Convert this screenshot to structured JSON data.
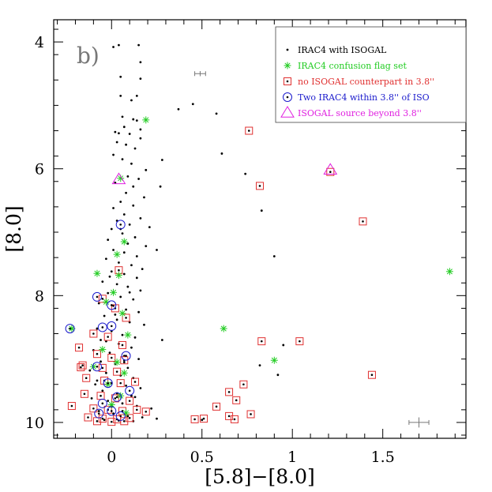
{
  "chart_data": {
    "type": "scatter",
    "panel_label": "b)",
    "xlabel": "[5.8]−[8.0]",
    "ylabel": "[8.0]",
    "xlim": [
      -0.32,
      1.96
    ],
    "ylim": [
      10.25,
      3.65
    ],
    "x_ticks": [
      0,
      0.5,
      1,
      1.5
    ],
    "x_tick_labels": [
      "0",
      "0.5",
      "1",
      "1.5"
    ],
    "y_ticks": [
      4,
      6,
      8,
      10
    ],
    "y_tick_labels": [
      "4",
      "6",
      "8",
      "10"
    ],
    "y_inverted": true,
    "legend_position": "top-right",
    "colors": {
      "black": "#000000",
      "green": "#22cc22",
      "red": "#e03030",
      "blue": "#1a1acc",
      "magenta": "#e020e0",
      "grey": "#777777"
    },
    "legend": [
      {
        "label": "IRAC4 with ISOGAL",
        "marker": "dot",
        "color": "#000000"
      },
      {
        "label": "IRAC4 confusion flag set",
        "marker": "asterisk",
        "color": "#22cc22"
      },
      {
        "label": "no ISOGAL counterpart in 3.8''",
        "marker": "dotted-square",
        "color": "#e03030"
      },
      {
        "label": "Two IRAC4 within 3.8'' of ISO",
        "marker": "dotted-circle",
        "color": "#1a1acc"
      },
      {
        "label": "ISOGAL source beyond 3.8''",
        "marker": "triangle",
        "color": "#e020e0"
      }
    ],
    "error_bars": [
      {
        "x": 0.49,
        "y": 4.5,
        "xerr": 0.03,
        "yerr": 0.04
      },
      {
        "x": 1.7,
        "y": 10.0,
        "xerr": 0.055,
        "yerr": 0.08
      }
    ],
    "series": [
      {
        "name": "IRAC4 with ISOGAL",
        "marker": "dot",
        "color": "#000000",
        "points": [
          [
            0.01,
            4.08
          ],
          [
            0.04,
            4.05
          ],
          [
            0.15,
            4.05
          ],
          [
            0.16,
            4.32
          ],
          [
            0.05,
            4.55
          ],
          [
            0.16,
            4.58
          ],
          [
            0.05,
            4.85
          ],
          [
            0.14,
            4.85
          ],
          [
            0.11,
            4.92
          ],
          [
            0.45,
            4.98
          ],
          [
            0.37,
            5.06
          ],
          [
            0.58,
            5.13
          ],
          [
            0.06,
            5.18
          ],
          [
            0.12,
            5.22
          ],
          [
            0.14,
            5.24
          ],
          [
            0.07,
            5.34
          ],
          [
            0.16,
            5.38
          ],
          [
            0.02,
            5.42
          ],
          [
            0.04,
            5.44
          ],
          [
            0.1,
            5.45
          ],
          [
            0.16,
            5.52
          ],
          [
            0.03,
            5.58
          ],
          [
            0.08,
            5.62
          ],
          [
            0.13,
            5.68
          ],
          [
            0.01,
            5.78
          ],
          [
            0.61,
            5.76
          ],
          [
            0.06,
            5.85
          ],
          [
            0.28,
            5.86
          ],
          [
            0.11,
            5.92
          ],
          [
            0.19,
            6.02
          ],
          [
            0.74,
            6.08
          ],
          [
            0.09,
            6.12
          ],
          [
            0.15,
            6.16
          ],
          [
            0.02,
            6.22
          ],
          [
            0.12,
            6.28
          ],
          [
            0.27,
            6.28
          ],
          [
            0.08,
            6.38
          ],
          [
            0.18,
            6.45
          ],
          [
            0.05,
            6.52
          ],
          [
            0.12,
            6.58
          ],
          [
            0.01,
            6.62
          ],
          [
            0.83,
            6.66
          ],
          [
            0.07,
            6.72
          ],
          [
            0.16,
            6.78
          ],
          [
            0.03,
            6.82
          ],
          [
            0.1,
            6.88
          ],
          [
            0.21,
            6.92
          ],
          [
            0.0,
            6.95
          ],
          [
            0.06,
            7.02
          ],
          [
            0.13,
            7.08
          ],
          [
            -0.02,
            7.12
          ],
          [
            0.09,
            7.18
          ],
          [
            0.19,
            7.22
          ],
          [
            0.01,
            7.28
          ],
          [
            0.07,
            7.32
          ],
          [
            0.25,
            7.28
          ],
          [
            0.14,
            7.38
          ],
          [
            0.9,
            7.38
          ],
          [
            -0.03,
            7.42
          ],
          [
            0.04,
            7.48
          ],
          [
            0.11,
            7.52
          ],
          [
            0.17,
            7.58
          ],
          [
            0.0,
            7.62
          ],
          [
            0.07,
            7.66
          ],
          [
            0.14,
            7.72
          ],
          [
            -0.05,
            7.78
          ],
          [
            0.03,
            7.82
          ],
          [
            0.09,
            7.86
          ],
          [
            0.16,
            7.92
          ],
          [
            -0.02,
            7.96
          ],
          [
            0.05,
            8.02
          ],
          [
            0.12,
            8.06
          ],
          [
            -0.07,
            8.12
          ],
          [
            0.01,
            8.16
          ],
          [
            0.08,
            8.22
          ],
          [
            0.15,
            8.26
          ],
          [
            -0.04,
            8.32
          ],
          [
            0.03,
            8.38
          ],
          [
            0.1,
            8.42
          ],
          [
            0.18,
            8.46
          ],
          [
            -0.08,
            8.52
          ],
          [
            0.0,
            8.56
          ],
          [
            0.06,
            8.62
          ],
          [
            0.13,
            8.66
          ],
          [
            -0.03,
            8.72
          ],
          [
            0.04,
            8.76
          ],
          [
            0.11,
            8.82
          ],
          [
            0.28,
            8.7
          ],
          [
            0.95,
            8.78
          ],
          [
            -0.1,
            8.86
          ],
          [
            -0.01,
            8.9
          ],
          [
            0.07,
            8.95
          ],
          [
            0.15,
            9.0
          ],
          [
            -0.06,
            9.04
          ],
          [
            0.02,
            9.08
          ],
          [
            0.09,
            9.14
          ],
          [
            0.82,
            9.1
          ],
          [
            -0.12,
            9.18
          ],
          [
            -0.03,
            9.22
          ],
          [
            0.05,
            9.26
          ],
          [
            0.12,
            9.3
          ],
          [
            0.92,
            9.25
          ],
          [
            -0.08,
            9.34
          ],
          [
            0.0,
            9.38
          ],
          [
            0.08,
            9.42
          ],
          [
            0.16,
            9.46
          ],
          [
            -0.05,
            9.5
          ],
          [
            0.03,
            9.54
          ],
          [
            0.11,
            9.58
          ],
          [
            -0.11,
            9.62
          ],
          [
            -0.02,
            9.66
          ],
          [
            0.06,
            9.7
          ],
          [
            0.14,
            9.74
          ],
          [
            0.22,
            9.78
          ],
          [
            -0.07,
            9.82
          ],
          [
            0.01,
            9.86
          ],
          [
            0.09,
            9.9
          ],
          [
            0.17,
            9.92
          ],
          [
            0.25,
            9.94
          ],
          [
            -0.04,
            9.96
          ],
          [
            0.04,
            9.97
          ],
          [
            0.12,
            9.98
          ],
          [
            0.5,
            9.96
          ],
          [
            0.05,
            6.95
          ],
          [
            -0.01,
            7.7
          ],
          [
            0.1,
            7.95
          ],
          [
            0.02,
            8.3
          ],
          [
            -0.06,
            8.7
          ],
          [
            0.07,
            9.05
          ],
          [
            -0.09,
            9.4
          ],
          [
            0.13,
            9.6
          ],
          [
            0.0,
            9.75
          ]
        ]
      },
      {
        "name": "IRAC4 confusion flag set",
        "marker": "asterisk",
        "color": "#22cc22",
        "points": [
          [
            0.19,
            5.23
          ],
          [
            0.05,
            6.15
          ],
          [
            0.07,
            7.15
          ],
          [
            0.03,
            7.35
          ],
          [
            -0.08,
            7.65
          ],
          [
            0.04,
            7.68
          ],
          [
            0.01,
            7.95
          ],
          [
            -0.03,
            8.1
          ],
          [
            0.06,
            8.28
          ],
          [
            -0.22,
            8.52
          ],
          [
            0.62,
            8.52
          ],
          [
            0.09,
            8.62
          ],
          [
            -0.05,
            8.85
          ],
          [
            0.03,
            9.05
          ],
          [
            0.9,
            9.02
          ],
          [
            -0.1,
            9.12
          ],
          [
            0.07,
            9.22
          ],
          [
            -0.02,
            9.4
          ],
          [
            0.05,
            9.58
          ],
          [
            1.87,
            7.62
          ],
          [
            0.0,
            9.72
          ],
          [
            0.08,
            9.85
          ]
        ]
      },
      {
        "name": "no ISOGAL counterpart in 3.8''",
        "marker": "dotted-square",
        "color": "#e03030",
        "points": [
          [
            0.76,
            5.4
          ],
          [
            1.21,
            6.05
          ],
          [
            0.82,
            6.27
          ],
          [
            1.39,
            6.83
          ],
          [
            0.04,
            7.6
          ],
          [
            -0.05,
            8.05
          ],
          [
            0.02,
            8.2
          ],
          [
            0.08,
            8.35
          ],
          [
            -0.1,
            8.6
          ],
          [
            -0.02,
            8.65
          ],
          [
            0.06,
            8.78
          ],
          [
            0.83,
            8.72
          ],
          [
            1.04,
            8.72
          ],
          [
            -0.18,
            8.82
          ],
          [
            -0.08,
            8.92
          ],
          [
            0.0,
            8.98
          ],
          [
            0.07,
            9.02
          ],
          [
            -0.16,
            9.1
          ],
          [
            -0.05,
            9.14
          ],
          [
            0.03,
            9.2
          ],
          [
            -0.17,
            9.13
          ],
          [
            -0.14,
            9.3
          ],
          [
            -0.04,
            9.34
          ],
          [
            0.05,
            9.38
          ],
          [
            0.13,
            9.36
          ],
          [
            0.73,
            9.4
          ],
          [
            1.44,
            9.25
          ],
          [
            -0.15,
            9.55
          ],
          [
            -0.06,
            9.58
          ],
          [
            0.02,
            9.62
          ],
          [
            0.1,
            9.66
          ],
          [
            0.65,
            9.52
          ],
          [
            0.69,
            9.65
          ],
          [
            0.58,
            9.75
          ],
          [
            -0.22,
            9.74
          ],
          [
            -0.1,
            9.78
          ],
          [
            -0.02,
            9.8
          ],
          [
            0.06,
            9.82
          ],
          [
            0.14,
            9.8
          ],
          [
            0.19,
            9.83
          ],
          [
            0.65,
            9.9
          ],
          [
            0.77,
            9.87
          ],
          [
            0.46,
            9.95
          ],
          [
            0.51,
            9.94
          ],
          [
            0.68,
            9.95
          ],
          [
            -0.13,
            9.92
          ],
          [
            -0.05,
            9.94
          ],
          [
            0.03,
            9.95
          ],
          [
            0.1,
            9.93
          ],
          [
            -0.08,
            9.98
          ],
          [
            0.0,
            9.99
          ],
          [
            0.07,
            9.98
          ]
        ]
      },
      {
        "name": "Two IRAC4 within 3.8'' of ISO",
        "marker": "dotted-circle",
        "color": "#1a1acc",
        "points": [
          [
            0.05,
            6.88
          ],
          [
            -0.08,
            8.02
          ],
          [
            0.0,
            8.15
          ],
          [
            -0.05,
            8.5
          ],
          [
            -0.23,
            8.52
          ],
          [
            0.0,
            8.48
          ],
          [
            0.08,
            8.95
          ],
          [
            -0.08,
            9.12
          ],
          [
            -0.02,
            9.38
          ],
          [
            0.03,
            9.6
          ],
          [
            0.1,
            9.5
          ],
          [
            -0.05,
            9.7
          ],
          [
            0.0,
            9.82
          ],
          [
            -0.07,
            9.86
          ],
          [
            0.05,
            9.9
          ]
        ]
      },
      {
        "name": "ISOGAL source beyond 3.8''",
        "marker": "triangle",
        "color": "#e020e0",
        "points": [
          [
            1.21,
            6.02
          ],
          [
            0.04,
            6.17
          ]
        ]
      }
    ]
  }
}
